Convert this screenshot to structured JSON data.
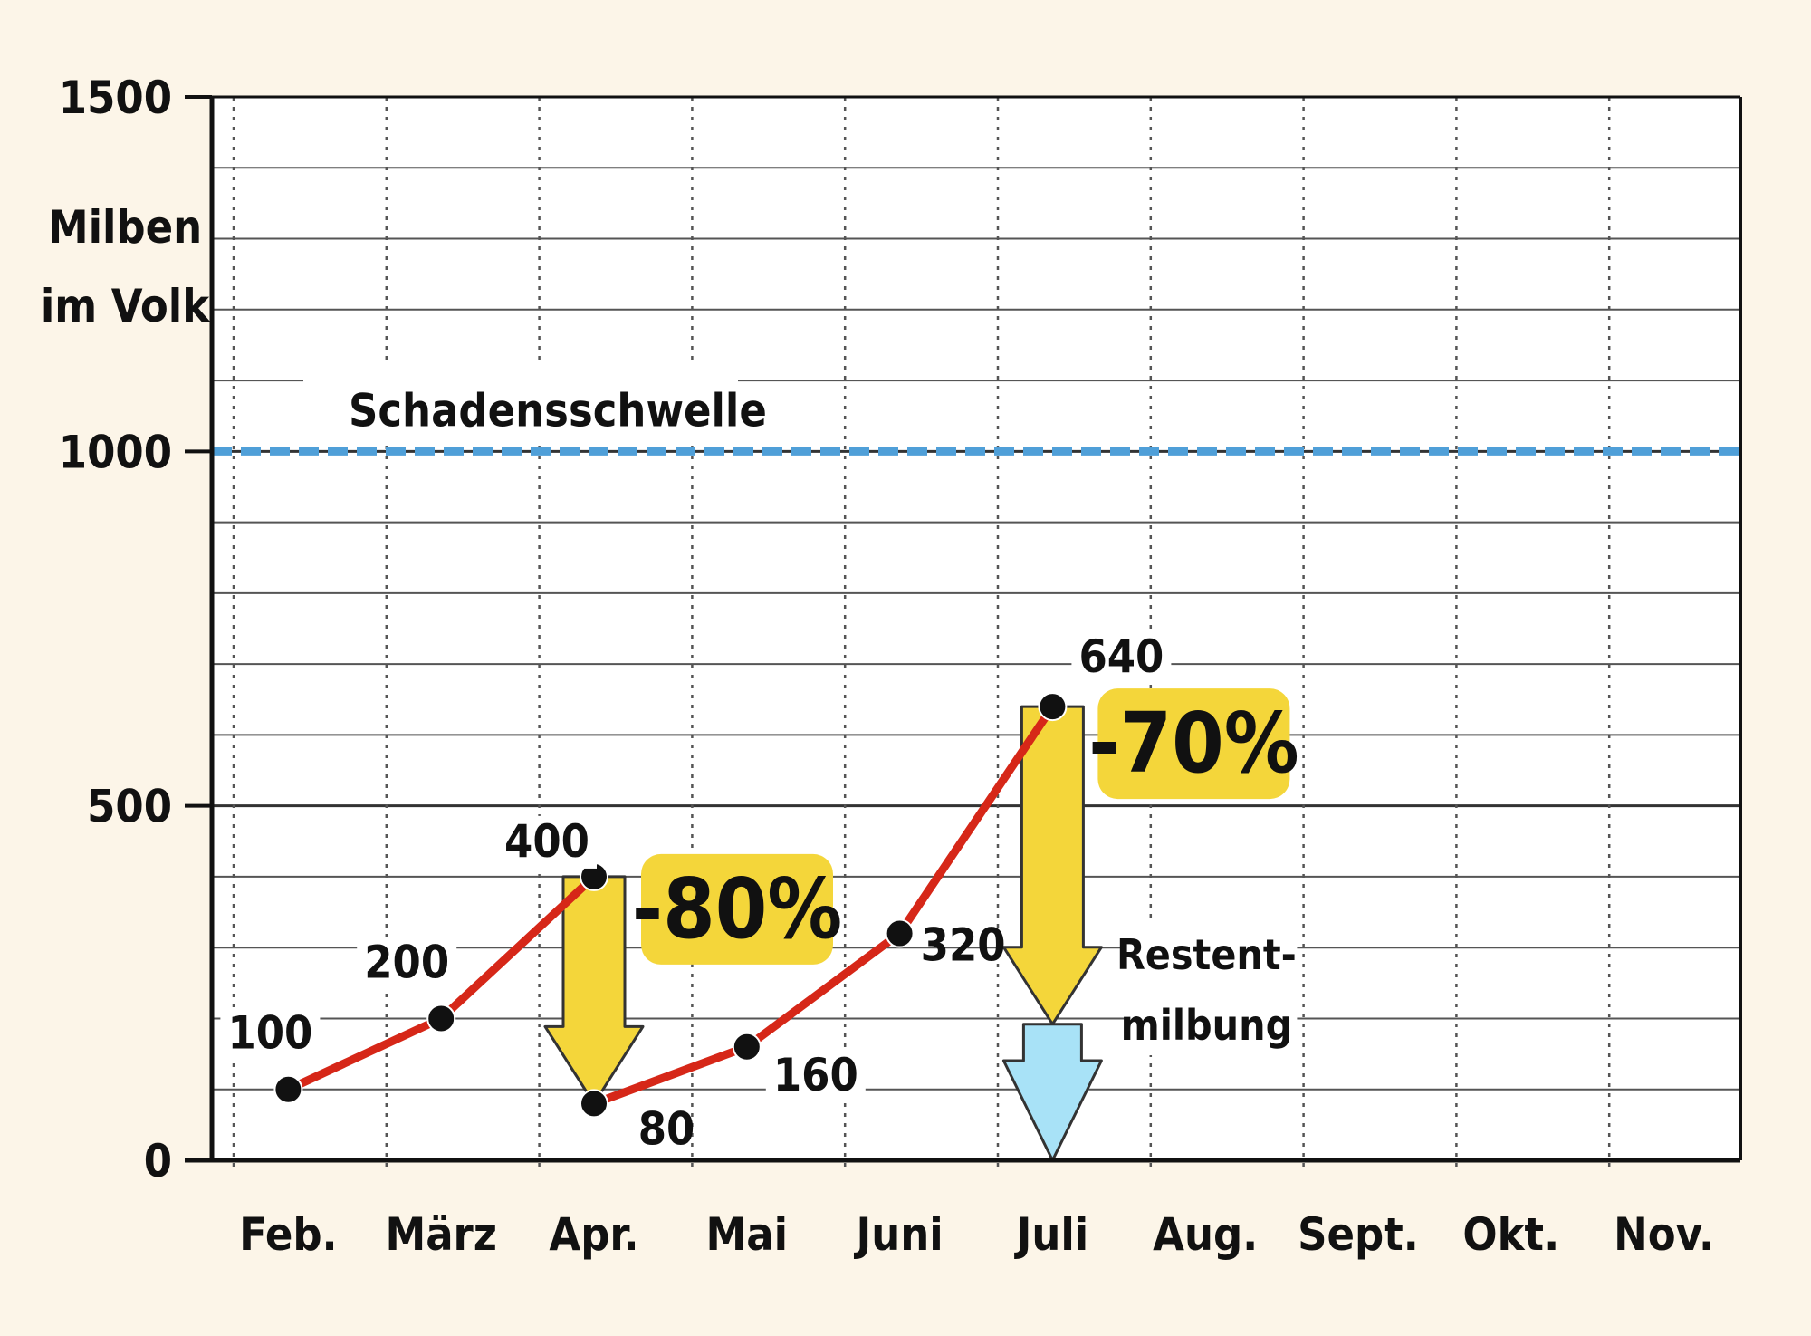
{
  "chart_data": {
    "type": "line",
    "ylabel_line1": "Milben",
    "ylabel_line2": "im Volk",
    "ylim": [
      0,
      1500
    ],
    "yticks": [
      0,
      500,
      1000,
      1500
    ],
    "y_minor_step": 100,
    "categories": [
      "Feb.",
      "März",
      "Apr.",
      "Mai",
      "Juni",
      "Juli",
      "Aug.",
      "Sept.",
      "Okt.",
      "Nov."
    ],
    "grid": true,
    "line_color": "#d62718",
    "series": [
      {
        "points": [
          {
            "x": 0.5,
            "y": 100,
            "label": "100"
          },
          {
            "x": 1.5,
            "y": 200,
            "label": "200"
          },
          {
            "x": 2.5,
            "y": 400,
            "label": "400"
          },
          {
            "x": 2.5,
            "y": 80,
            "label": "80"
          },
          {
            "x": 3.5,
            "y": 160,
            "label": "160"
          },
          {
            "x": 4.5,
            "y": 320,
            "label": "320"
          },
          {
            "x": 5.5,
            "y": 640,
            "label": "640"
          }
        ]
      }
    ],
    "threshold": {
      "value": 1000,
      "label": "Schadensschwelle",
      "color": "#4f9fd8"
    },
    "reductions": [
      {
        "x": 2.5,
        "from": 400,
        "to": 80,
        "label": "-80%",
        "color": "#f4d63a"
      },
      {
        "x": 5.5,
        "from": 640,
        "to": 192,
        "label": "-70%",
        "color": "#f4d63a"
      }
    ],
    "remainder": {
      "x": 5.5,
      "from": 192,
      "to": 0,
      "label_line1": "Restent-",
      "label_line2": "milbung",
      "color": "#a8e2f7"
    }
  }
}
